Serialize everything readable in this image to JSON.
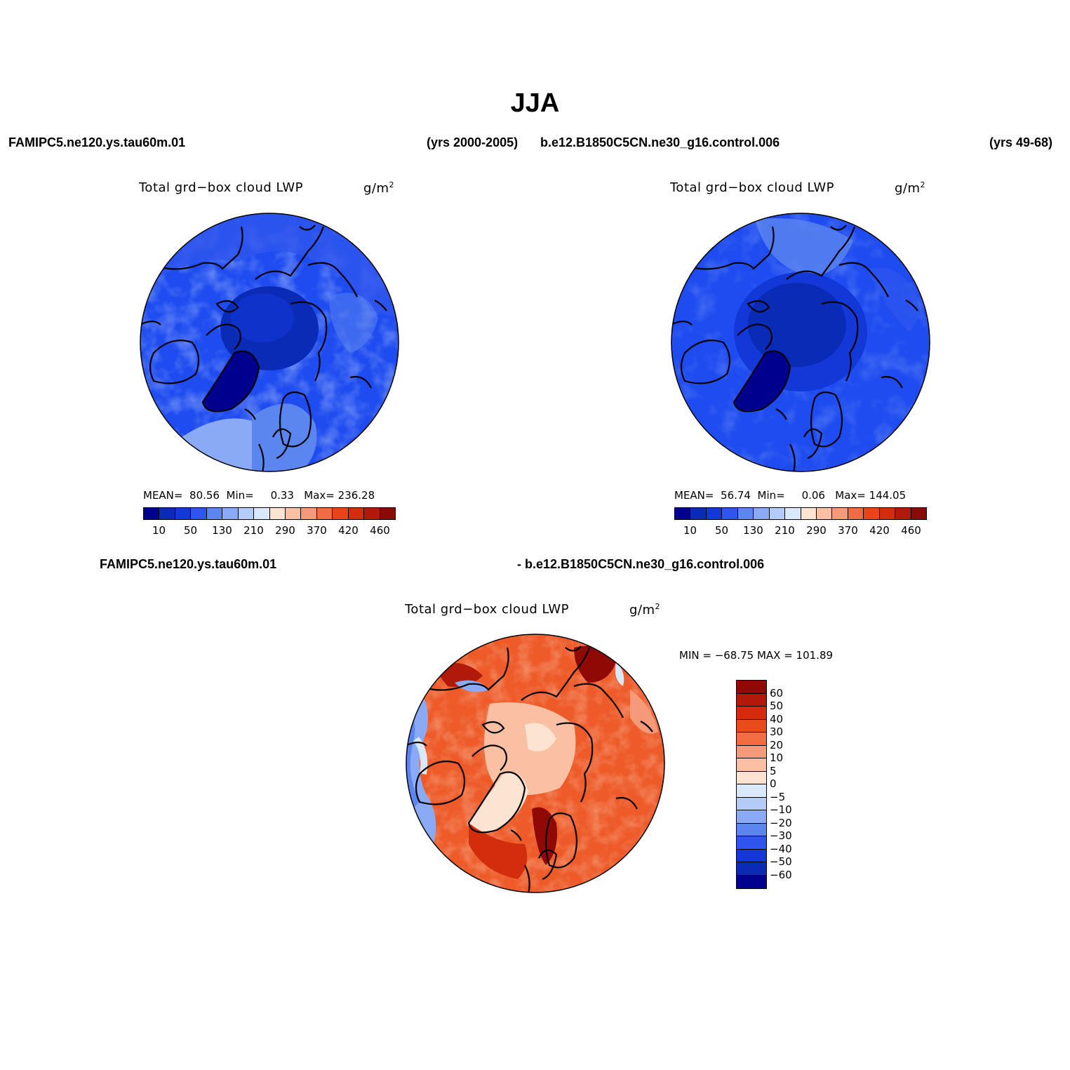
{
  "title": "JJA",
  "top_left": {
    "case_name": "FAMIPC5.ne120.ys.tau60m.01",
    "years": "(yrs 2000-2005)",
    "variable": "Total grd−box cloud LWP",
    "units": "g/m",
    "units_sup": "2",
    "mean_label": "MEAN=",
    "mean": "80.56",
    "min_label": "Min=",
    "min": "0.33",
    "max_label": "Max=",
    "max": "236.28"
  },
  "top_right": {
    "case_name": "b.e12.B1850C5CN.ne30_g16.control.006",
    "years": "(yrs 49-68)",
    "variable": "Total grd−box cloud LWP",
    "units": "g/m",
    "units_sup": "2",
    "mean_label": "MEAN=",
    "mean": "56.74",
    "min_label": "Min=",
    "min": "0.06",
    "max_label": "Max=",
    "max": "144.05"
  },
  "bottom": {
    "case_left": "FAMIPC5.ne120.ys.tau60m.01",
    "case_right": "- b.e12.B1850C5CN.ne30_g16.control.006",
    "variable": "Total grd−box cloud LWP",
    "units": "g/m",
    "units_sup": "2",
    "minmax": "MIN = −68.75 MAX = 101.89"
  },
  "colorbar_abs": {
    "colors": [
      "#00008f",
      "#0a2bb5",
      "#1238d8",
      "#2e55ee",
      "#5b86f0",
      "#8aaaf5",
      "#b4cdf8",
      "#d9e8fb",
      "#fde3d1",
      "#f9c0a4",
      "#f59a78",
      "#f06c44",
      "#e94418",
      "#d22e0e",
      "#b1190a",
      "#8a0a05"
    ],
    "tick_labels": [
      "10",
      "50",
      "130",
      "210",
      "290",
      "370",
      "420",
      "460"
    ]
  },
  "colorbar_diff": {
    "colors": [
      "#8f0a05",
      "#b1190a",
      "#d62a0c",
      "#eb4a1a",
      "#f26e40",
      "#f59a78",
      "#f9c0a4",
      "#fde3d1",
      "#d9e8fb",
      "#b4cdf8",
      "#8aaaf5",
      "#5b86f0",
      "#2e55ee",
      "#1238d8",
      "#0a2bb5",
      "#00008f"
    ],
    "tick_labels": [
      "60",
      "50",
      "40",
      "30",
      "20",
      "10",
      "5",
      "0",
      "−5",
      "−10",
      "−20",
      "−30",
      "−40",
      "−50",
      "−60"
    ]
  },
  "chart_data": [
    {
      "type": "heatmap",
      "title": "Total grd−box cloud LWP",
      "case": "FAMIPC5.ne120.ys.tau60m.01",
      "units": "g/m2",
      "projection": "north polar stereographic",
      "mean": 80.56,
      "min": 0.33,
      "max": 236.28,
      "colorbar_levels": [
        10,
        50,
        130,
        210,
        290,
        370,
        420,
        460
      ]
    },
    {
      "type": "heatmap",
      "title": "Total grd−box cloud LWP",
      "case": "b.e12.B1850C5CN.ne30_g16.control.006",
      "units": "g/m2",
      "projection": "north polar stereographic",
      "mean": 56.74,
      "min": 0.06,
      "max": 144.05,
      "colorbar_levels": [
        10,
        50,
        130,
        210,
        290,
        370,
        420,
        460
      ]
    },
    {
      "type": "heatmap",
      "title": "Total grd−box cloud LWP",
      "case": "FAMIPC5.ne120.ys.tau60m.01 - b.e12.B1850C5CN.ne30_g16.control.006",
      "units": "g/m2",
      "projection": "north polar stereographic",
      "min": -68.75,
      "max": 101.89,
      "colorbar_levels": [
        60,
        50,
        40,
        30,
        20,
        10,
        5,
        0,
        -5,
        -10,
        -20,
        -30,
        -40,
        -50,
        -60
      ]
    }
  ]
}
